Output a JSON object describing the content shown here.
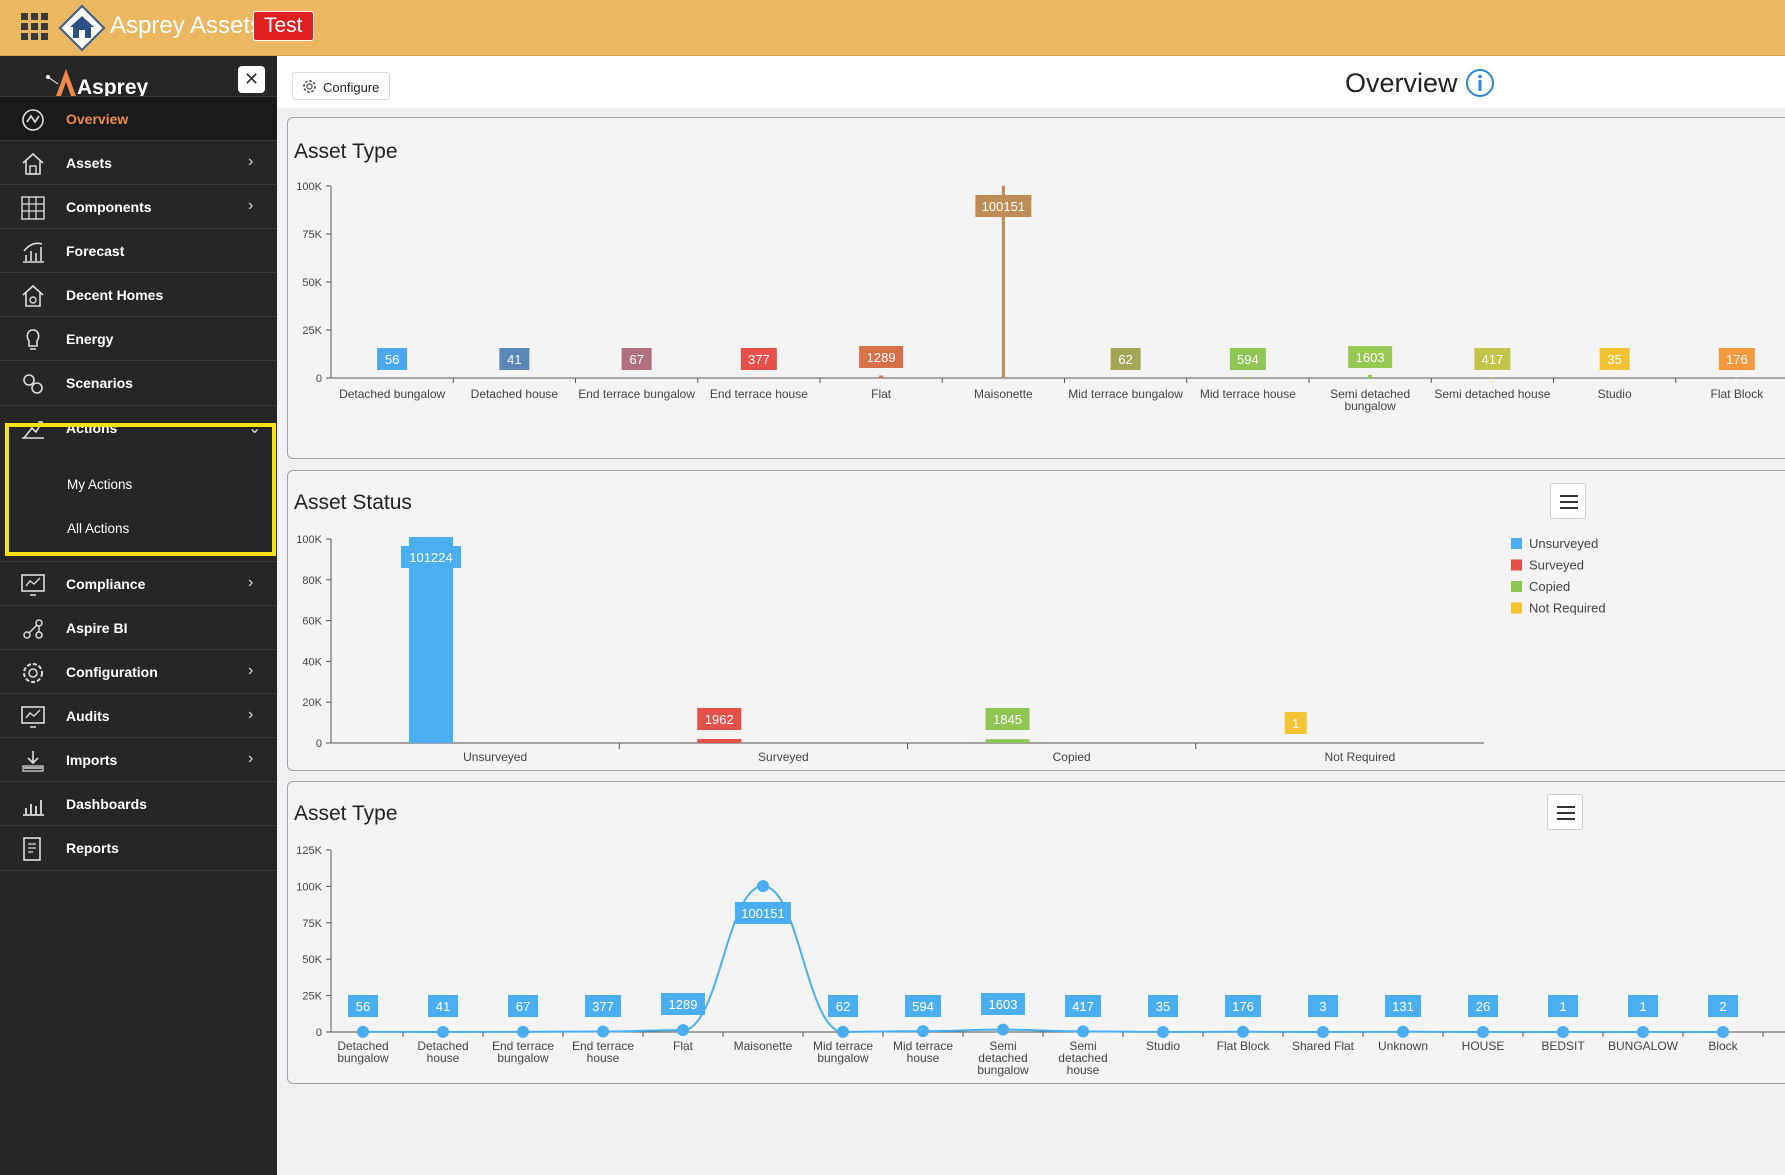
{
  "topbar": {
    "app_title": "Asprey Assets",
    "env_badge": "Test",
    "bar_color": "#ebb760"
  },
  "sidebar": {
    "brand": "Asprey",
    "close_label": "✕",
    "items": [
      {
        "key": "overview",
        "label": "Overview",
        "icon": "overview-icon",
        "active": true,
        "chevron": ""
      },
      {
        "key": "assets",
        "label": "Assets",
        "icon": "assets-icon",
        "chevron": "›"
      },
      {
        "key": "components",
        "label": "Components",
        "icon": "components-icon",
        "chevron": "›"
      },
      {
        "key": "forecast",
        "label": "Forecast",
        "icon": "forecast-icon",
        "chevron": ""
      },
      {
        "key": "decent-homes",
        "label": "Decent Homes",
        "icon": "decent-homes-icon",
        "chevron": ""
      },
      {
        "key": "energy",
        "label": "Energy",
        "icon": "energy-icon",
        "chevron": ""
      },
      {
        "key": "scenarios",
        "label": "Scenarios",
        "icon": "scenarios-icon",
        "chevron": ""
      },
      {
        "key": "actions",
        "label": "Actions",
        "icon": "actions-icon",
        "chevron": "⌄",
        "expanded": true
      },
      {
        "key": "compliance",
        "label": "Compliance",
        "icon": "compliance-icon",
        "chevron": "›"
      },
      {
        "key": "aspire-bi",
        "label": "Aspire BI",
        "icon": "aspire-bi-icon",
        "chevron": ""
      },
      {
        "key": "configuration",
        "label": "Configuration",
        "icon": "configuration-icon",
        "chevron": "›"
      },
      {
        "key": "audits",
        "label": "Audits",
        "icon": "audits-icon",
        "chevron": "›"
      },
      {
        "key": "imports",
        "label": "Imports",
        "icon": "imports-icon",
        "chevron": "›"
      },
      {
        "key": "dashboards",
        "label": "Dashboards",
        "icon": "dashboards-icon",
        "chevron": ""
      },
      {
        "key": "reports",
        "label": "Reports",
        "icon": "reports-icon",
        "chevron": ""
      }
    ],
    "actions_sub": [
      "My Actions",
      "All Actions"
    ],
    "highlight_color": "#f7e315"
  },
  "main": {
    "configure_label": "Configure",
    "page_title": "Overview"
  },
  "chart_data": [
    {
      "type": "bar",
      "title": "Asset Type",
      "categories": [
        "Detached bungalow",
        "Detached house",
        "End terrace bungalow",
        "End terrace house",
        "Flat",
        "Maisonette",
        "Mid terrace bungalow",
        "Mid terrace house",
        "Semi detached bungalow",
        "Semi detached house",
        "Studio",
        "Flat Block"
      ],
      "values": [
        56,
        41,
        67,
        377,
        1289,
        100151,
        62,
        594,
        1603,
        417,
        35,
        176
      ],
      "colors": [
        "#4ba8ec",
        "#5b86b8",
        "#b07080",
        "#e5514a",
        "#d6714a",
        "#c08c55",
        "#a3a556",
        "#8fc653",
        "#96c853",
        "#c3c44a",
        "#f1c232",
        "#f39a3c"
      ],
      "yticks": [
        "0",
        "25K",
        "50K",
        "75K",
        "100K"
      ],
      "ylim": [
        0,
        100000
      ],
      "legend": false
    },
    {
      "type": "bar",
      "title": "Asset Status",
      "categories": [
        "Unsurveyed",
        "Surveyed",
        "Copied",
        "Not Required"
      ],
      "values": [
        101224,
        1962,
        1845,
        1
      ],
      "colors": [
        "#4aaef0",
        "#e5514a",
        "#8fc653",
        "#f3c534"
      ],
      "yticks": [
        "0",
        "20K",
        "40K",
        "60K",
        "80K",
        "100K"
      ],
      "ylim": [
        0,
        100000
      ],
      "legend": true,
      "legend_placement": "top-right"
    },
    {
      "type": "line",
      "title": "Asset Type",
      "categories": [
        "Detached bungalow",
        "Detached house",
        "End terrace bungalow",
        "End terrace house",
        "Flat",
        "Maisonette",
        "Mid terrace bungalow",
        "Mid terrace house",
        "Semi detached bungalow",
        "Semi detached house",
        "Studio",
        "Flat Block",
        "Shared Flat",
        "Unknown",
        "HOUSE",
        "BEDSIT",
        "BUNGALOW",
        "Block"
      ],
      "values": [
        56,
        41,
        67,
        377,
        1289,
        100151,
        62,
        594,
        1603,
        417,
        35,
        176,
        3,
        131,
        26,
        1,
        1,
        2
      ],
      "color": "#4aaef0",
      "yticks": [
        "0",
        "25K",
        "50K",
        "75K",
        "100K",
        "125K"
      ],
      "ylim": [
        0,
        125000
      ],
      "legend": false
    }
  ]
}
